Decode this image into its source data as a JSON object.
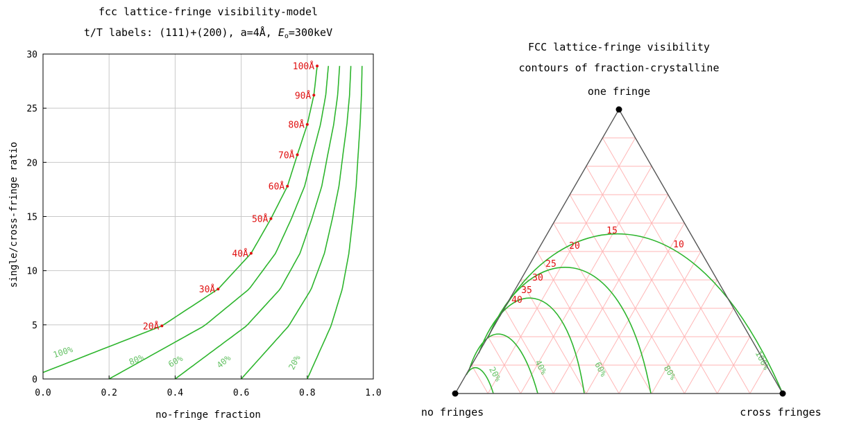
{
  "chart_data": [
    {
      "type": "line",
      "title": "fcc lattice-fringe visibility-model",
      "subtitle": "t/T labels: (111)+(200), a=4Å, Eₒ=300keV",
      "xlabel": "no-fringe fraction",
      "ylabel": "single/cross-fringe ratio",
      "xlim": [
        0,
        1
      ],
      "ylim": [
        0,
        30
      ],
      "xticks": [
        "0.0",
        "0.2",
        "0.4",
        "0.6",
        "0.8",
        "1.0"
      ],
      "yticks": [
        "0",
        "5",
        "10",
        "15",
        "20",
        "25",
        "30"
      ],
      "grid": true,
      "curve_color": "#2db52d",
      "label_color": "#e01010",
      "series": [
        {
          "label": "100%",
          "start_x": 0.0
        },
        {
          "label": "80%",
          "start_x": 0.2
        },
        {
          "label": "60%",
          "start_x": 0.4
        },
        {
          "label": "40%",
          "start_x": 0.6
        },
        {
          "label": "20%",
          "start_x": 0.8
        }
      ],
      "thickness_points": [
        {
          "label": "20Å",
          "x": 0.36,
          "y": 4.9
        },
        {
          "label": "30Å",
          "x": 0.53,
          "y": 8.3
        },
        {
          "label": "40Å",
          "x": 0.63,
          "y": 11.6
        },
        {
          "label": "50Å",
          "x": 0.69,
          "y": 14.8
        },
        {
          "label": "60Å",
          "x": 0.74,
          "y": 17.8
        },
        {
          "label": "70Å",
          "x": 0.77,
          "y": 20.7
        },
        {
          "label": "80Å",
          "x": 0.8,
          "y": 23.5
        },
        {
          "label": "90Å",
          "x": 0.82,
          "y": 26.2
        },
        {
          "label": "100Å",
          "x": 0.83,
          "y": 28.9
        }
      ]
    },
    {
      "type": "ternary-contour",
      "title": "FCC lattice-fringe visibility",
      "subtitle": "contours of fraction-crystalline",
      "corners": {
        "top": "one fringe",
        "left": "no fringes",
        "right": "cross fringes"
      },
      "grid": true,
      "grid_color": "#ffb6b6",
      "contours": [
        {
          "label": "20%",
          "value": 20
        },
        {
          "label": "40%",
          "value": 40
        },
        {
          "label": "60%",
          "value": 60
        },
        {
          "label": "80%",
          "value": 80
        },
        {
          "label": "100%",
          "value": 100
        }
      ],
      "ratio_labels": [
        "10",
        "15",
        "20",
        "25",
        "30",
        "35",
        "40"
      ]
    }
  ]
}
